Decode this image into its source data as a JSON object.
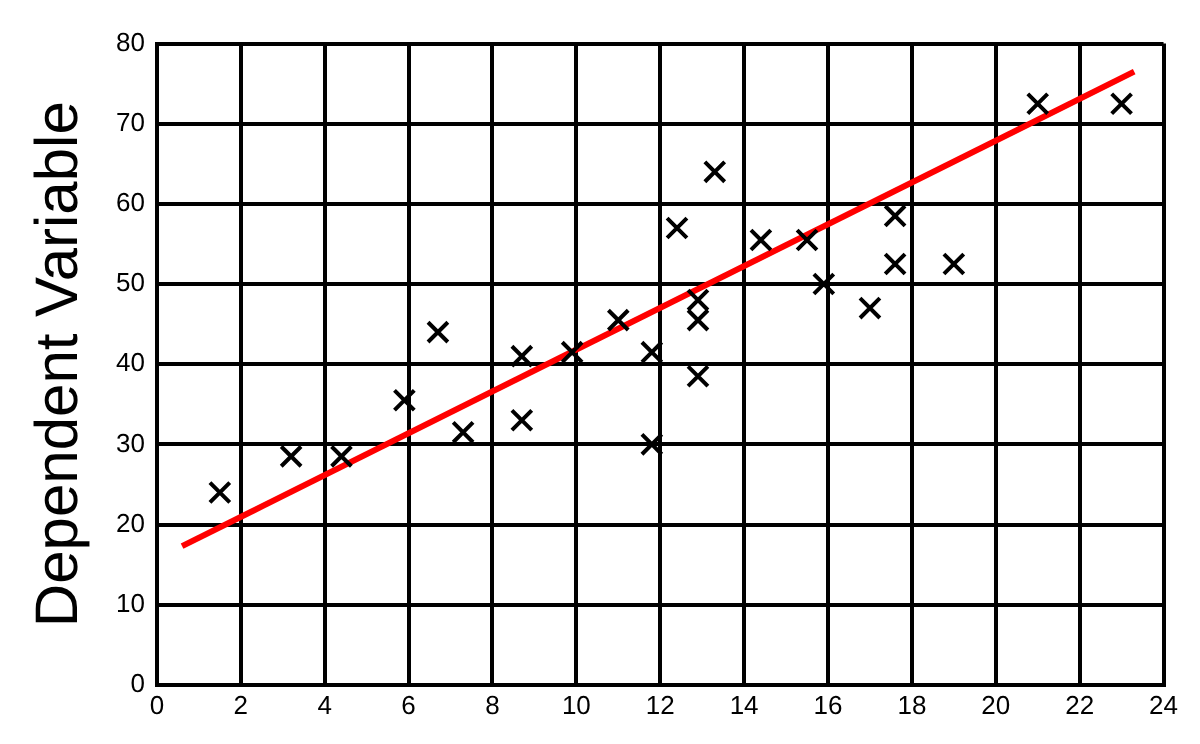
{
  "chart_data": {
    "type": "scatter",
    "ylabel": "Dependent Variable",
    "xlim": [
      0,
      24
    ],
    "xticks": [
      0,
      2,
      4,
      6,
      8,
      10,
      12,
      14,
      16,
      18,
      20,
      22,
      24
    ],
    "ylim": [
      0,
      80
    ],
    "yticks": [
      0,
      10,
      20,
      30,
      40,
      50,
      60,
      70,
      80
    ],
    "grid": true,
    "legend": false,
    "series": [
      {
        "marker": "cross",
        "color": "#000000",
        "x": [
          1.5,
          3.2,
          4.4,
          5.9,
          6.7,
          7.3,
          8.7,
          8.7,
          9.9,
          11,
          11.8,
          11.8,
          12.4,
          12.9,
          12.9,
          12.9,
          13.3,
          14.4,
          15.5,
          15.9,
          17,
          17.6,
          17.6,
          19,
          21,
          23
        ],
        "values": [
          24,
          28.5,
          28.5,
          35.5,
          44,
          31.5,
          41,
          33,
          41.5,
          45.5,
          41.5,
          30,
          57,
          48,
          45.5,
          38.5,
          64,
          55.5,
          55.5,
          50,
          47,
          58.5,
          52.5,
          52.5,
          72.5,
          72.5
        ]
      },
      {
        "type": "line",
        "marker": "none",
        "color": "#ff0000",
        "x": [
          0.6,
          23.3
        ],
        "values": [
          17.3,
          76.5
        ]
      }
    ]
  }
}
